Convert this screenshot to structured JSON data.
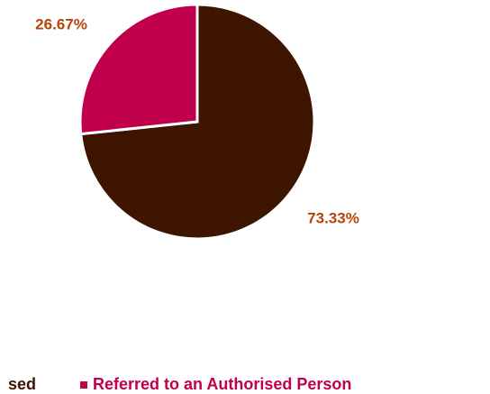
{
  "chart_data": {
    "type": "pie",
    "categories": [
      "sed",
      "Referred to an Authorised Person"
    ],
    "values": [
      73.33,
      26.67
    ],
    "value_labels": [
      "73.33%",
      "26.67%"
    ],
    "colors": [
      "#3d1500",
      "#c0004a"
    ],
    "label_color": "#b5460a",
    "legend": "bottom"
  }
}
